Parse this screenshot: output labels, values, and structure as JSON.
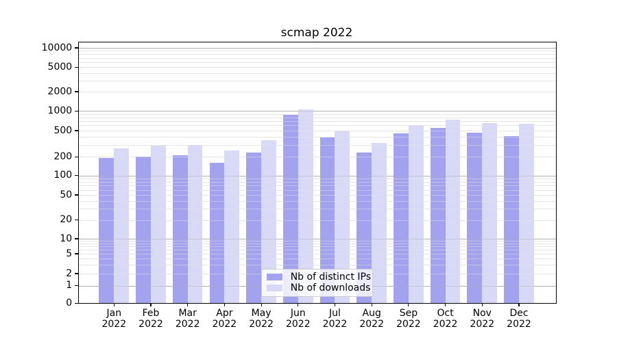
{
  "chart_data": {
    "type": "bar",
    "title": "scmap 2022",
    "yscale": "symlog",
    "categories": [
      "Jan 2022",
      "Feb 2022",
      "Mar 2022",
      "Apr 2022",
      "May 2022",
      "Jun 2022",
      "Jul 2022",
      "Aug 2022",
      "Sep 2022",
      "Oct 2022",
      "Nov 2022",
      "Dec 2022"
    ],
    "series": [
      {
        "name": "Nb of distinct IPs",
        "key": "distinct-ips",
        "color": "#a2a2ee",
        "values": [
          190,
          200,
          210,
          160,
          230,
          880,
          390,
          230,
          455,
          550,
          470,
          410
        ]
      },
      {
        "name": "Nb of downloads",
        "key": "downloads",
        "color": "#d8d8f7",
        "values": [
          270,
          295,
          305,
          250,
          355,
          1050,
          500,
          325,
          600,
          740,
          660,
          635
        ]
      }
    ],
    "yticks": [
      0,
      1,
      2,
      5,
      10,
      20,
      50,
      100,
      200,
      500,
      1000,
      2000,
      5000,
      10000
    ],
    "ylim": [
      0,
      12500
    ],
    "grid": true,
    "legend_position": "lower center",
    "colors": {
      "grid_major": "#b0b0b0",
      "grid_minor": "#e5e5e5",
      "axis": "#000000",
      "text": "#000000",
      "background": "#ffffff"
    }
  }
}
